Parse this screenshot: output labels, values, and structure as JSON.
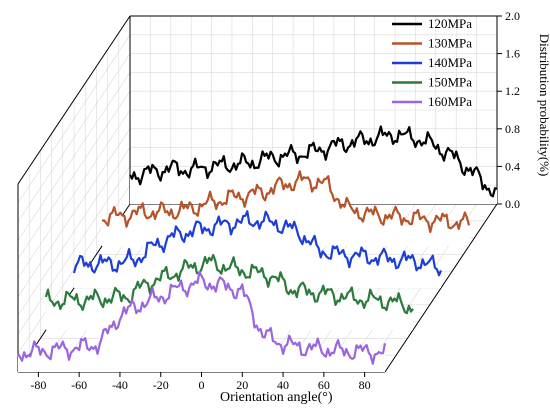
{
  "chart_data": {
    "type": "line",
    "projection": "3d-waterfall",
    "xlabel": "Orientation angle(°)",
    "zlabel": "Distribution probability(%)",
    "x_ticks": [
      -80,
      -60,
      -40,
      -20,
      0,
      20,
      40,
      60,
      80
    ],
    "x_tick_labels": [
      "-80",
      "-60",
      "-40",
      "-20",
      "0",
      "20",
      "40",
      "60",
      "80"
    ],
    "xlim": [
      -90,
      90
    ],
    "z_ticks": [
      0.0,
      0.4,
      0.8,
      1.2,
      1.6,
      2.0
    ],
    "z_tick_labels": [
      "0.0",
      "0.4",
      "0.8",
      "1.2",
      "1.6",
      "2.0"
    ],
    "zlim": [
      0,
      2.0
    ],
    "grid": true,
    "legend_position": "top-right",
    "series": [
      {
        "name": "120MPa",
        "color": "#000000",
        "x": [
          -90,
          -80,
          -70,
          -60,
          -50,
          -40,
          -30,
          -20,
          -10,
          0,
          10,
          20,
          30,
          40,
          50,
          60,
          70,
          80,
          90
        ],
        "y": [
          0.3,
          0.34,
          0.38,
          0.36,
          0.4,
          0.42,
          0.44,
          0.5,
          0.52,
          0.56,
          0.62,
          0.66,
          0.7,
          0.74,
          0.7,
          0.62,
          0.48,
          0.3,
          0.1
        ]
      },
      {
        "name": "130MPa",
        "color": "#b5532a",
        "x": [
          -90,
          -80,
          -70,
          -60,
          -50,
          -40,
          -30,
          -20,
          -10,
          0,
          10,
          20,
          30,
          40,
          50,
          60,
          70,
          80,
          90
        ],
        "y": [
          0.3,
          0.32,
          0.36,
          0.36,
          0.38,
          0.44,
          0.5,
          0.54,
          0.58,
          0.66,
          0.7,
          0.66,
          0.4,
          0.34,
          0.32,
          0.3,
          0.28,
          0.26,
          0.24
        ]
      },
      {
        "name": "140MPa",
        "color": "#1e3fd6",
        "x": [
          -90,
          -80,
          -70,
          -60,
          -50,
          -40,
          -30,
          -20,
          -10,
          0,
          10,
          20,
          30,
          40,
          50,
          60,
          70,
          80,
          90
        ],
        "y": [
          0.24,
          0.26,
          0.26,
          0.3,
          0.46,
          0.56,
          0.62,
          0.66,
          0.7,
          0.72,
          0.68,
          0.6,
          0.4,
          0.36,
          0.34,
          0.32,
          0.3,
          0.28,
          0.2
        ]
      },
      {
        "name": "150MPa",
        "color": "#2c7a3c",
        "x": [
          -90,
          -80,
          -70,
          -60,
          -50,
          -40,
          -30,
          -20,
          -10,
          0,
          10,
          20,
          30,
          40,
          50,
          60,
          70,
          80,
          90
        ],
        "y": [
          0.3,
          0.32,
          0.32,
          0.34,
          0.36,
          0.5,
          0.58,
          0.66,
          0.72,
          0.66,
          0.62,
          0.58,
          0.44,
          0.4,
          0.38,
          0.34,
          0.32,
          0.3,
          0.24
        ]
      },
      {
        "name": "160MPa",
        "color": "#9a66e0",
        "x": [
          -90,
          -80,
          -70,
          -60,
          -50,
          -40,
          -30,
          -20,
          -10,
          0,
          10,
          20,
          30,
          40,
          50,
          60,
          70,
          80,
          90
        ],
        "y": [
          0.2,
          0.22,
          0.24,
          0.26,
          0.3,
          0.6,
          0.72,
          0.8,
          0.9,
          0.96,
          0.92,
          0.86,
          0.4,
          0.3,
          0.26,
          0.24,
          0.22,
          0.22,
          0.2
        ]
      }
    ]
  }
}
